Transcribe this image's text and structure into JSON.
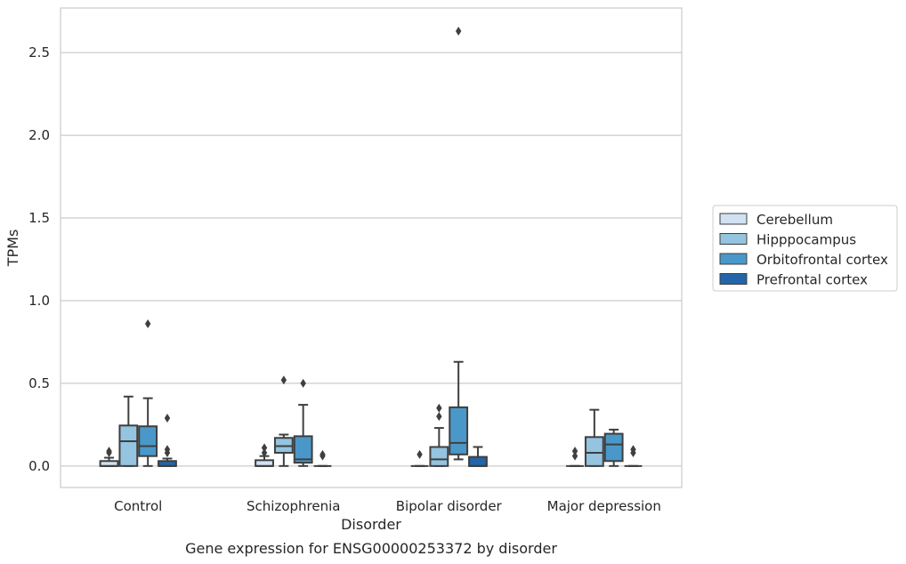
{
  "chart_data": {
    "type": "box",
    "title": "",
    "caption": "Gene expression for ENSG00000253372 by disorder",
    "xlabel": "Disorder",
    "ylabel": "TPMs",
    "ylim": [
      -0.13,
      2.77
    ],
    "yticks": [
      0.0,
      0.5,
      1.0,
      1.5,
      2.0,
      2.5
    ],
    "ytick_labels": [
      "0.0",
      "0.5",
      "1.0",
      "1.5",
      "2.0",
      "2.5"
    ],
    "grid": "horizontal",
    "legend_position": "right",
    "categories": [
      "Control",
      "Schizophrenia",
      "Bipolar disorder",
      "Major depression"
    ],
    "series": [
      {
        "name": "Cerebellum",
        "color": "#d0e1f2",
        "boxes": [
          {
            "q1": 0.0,
            "median": 0.0,
            "q3": 0.03,
            "whislo": 0.0,
            "whishi": 0.05,
            "fliers": [
              0.08,
              0.09
            ]
          },
          {
            "q1": 0.0,
            "median": 0.0,
            "q3": 0.035,
            "whislo": 0.0,
            "whishi": 0.06,
            "fliers": [
              0.08,
              0.11
            ]
          },
          {
            "q1": 0.0,
            "median": 0.0,
            "q3": 0.0,
            "whislo": 0.0,
            "whishi": 0.0,
            "fliers": [
              0.07
            ]
          },
          {
            "q1": 0.0,
            "median": 0.0,
            "q3": 0.0,
            "whislo": 0.0,
            "whishi": 0.0,
            "fliers": [
              0.06,
              0.09
            ]
          }
        ]
      },
      {
        "name": "Hipppocampus",
        "color": "#94c4df",
        "boxes": [
          {
            "q1": 0.0,
            "median": 0.15,
            "q3": 0.245,
            "whislo": 0.0,
            "whishi": 0.42,
            "fliers": []
          },
          {
            "q1": 0.08,
            "median": 0.12,
            "q3": 0.17,
            "whislo": 0.0,
            "whishi": 0.19,
            "fliers": [
              0.52
            ]
          },
          {
            "q1": 0.0,
            "median": 0.04,
            "q3": 0.115,
            "whislo": 0.0,
            "whishi": 0.23,
            "fliers": [
              0.3,
              0.35
            ]
          },
          {
            "q1": 0.0,
            "median": 0.08,
            "q3": 0.175,
            "whislo": 0.0,
            "whishi": 0.34,
            "fliers": []
          }
        ]
      },
      {
        "name": "Orbitofrontal cortex",
        "color": "#4a98c9",
        "boxes": [
          {
            "q1": 0.06,
            "median": 0.12,
            "q3": 0.24,
            "whislo": 0.0,
            "whishi": 0.41,
            "fliers": [
              0.86
            ]
          },
          {
            "q1": 0.02,
            "median": 0.04,
            "q3": 0.18,
            "whislo": 0.0,
            "whishi": 0.37,
            "fliers": [
              0.5
            ]
          },
          {
            "q1": 0.07,
            "median": 0.14,
            "q3": 0.355,
            "whislo": 0.04,
            "whishi": 0.63,
            "fliers": [
              2.63
            ]
          },
          {
            "q1": 0.03,
            "median": 0.13,
            "q3": 0.195,
            "whislo": 0.0,
            "whishi": 0.22,
            "fliers": []
          }
        ]
      },
      {
        "name": "Prefrontal cortex",
        "color": "#2365a8",
        "boxes": [
          {
            "q1": 0.0,
            "median": 0.0,
            "q3": 0.03,
            "whislo": 0.0,
            "whishi": 0.045,
            "fliers": [
              0.08,
              0.1,
              0.29
            ]
          },
          {
            "q1": 0.0,
            "median": 0.0,
            "q3": 0.0,
            "whislo": 0.0,
            "whishi": 0.0,
            "fliers": [
              0.06,
              0.07
            ]
          },
          {
            "q1": 0.0,
            "median": 0.0,
            "q3": 0.055,
            "whislo": 0.0,
            "whishi": 0.115,
            "fliers": []
          },
          {
            "q1": 0.0,
            "median": 0.0,
            "q3": 0.0,
            "whislo": 0.0,
            "whishi": 0.0,
            "fliers": [
              0.08,
              0.1
            ]
          }
        ]
      }
    ]
  }
}
